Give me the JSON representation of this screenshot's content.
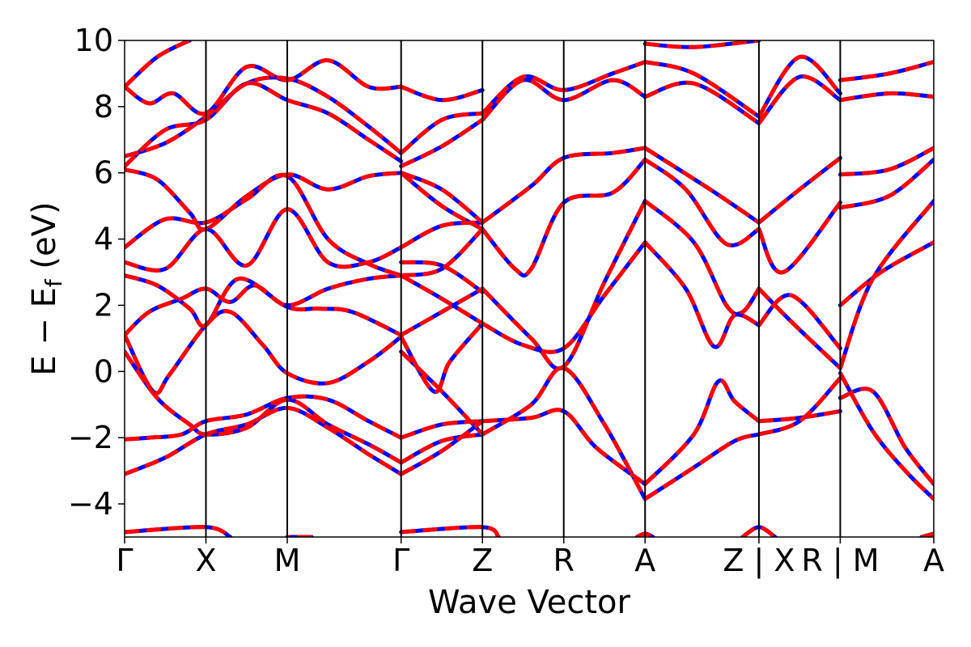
{
  "chart_data": {
    "type": "line",
    "xlabel": "Wave Vector",
    "ylabel_parts": [
      "E − E",
      "f",
      " (eV)"
    ],
    "ylim": [
      -5,
      10
    ],
    "yticks": [
      -4,
      -2,
      0,
      2,
      4,
      6,
      8,
      10
    ],
    "ytick_labels": [
      "−4",
      "−2",
      "0",
      "2",
      "4",
      "6",
      "8",
      "10"
    ],
    "xlim": [
      0,
      9.95
    ],
    "kpath": [
      {
        "label": "Γ",
        "x": 0
      },
      {
        "label": "X",
        "x": 1
      },
      {
        "label": "M",
        "x": 2
      },
      {
        "label": "Γ",
        "x": 3.4
      },
      {
        "label": "Z",
        "x": 4.4
      },
      {
        "label": "R",
        "x": 5.4
      },
      {
        "label": "A",
        "x": 6.4
      },
      {
        "label": "Z | X",
        "x": 7.8
      },
      {
        "label": "R | M",
        "x": 8.8
      },
      {
        "label": "A",
        "x": 9.95
      }
    ],
    "colors": {
      "series_a": "#0000ff",
      "series_b": "#ff0000"
    },
    "bands": [
      [
        [
          0,
          -3.1
        ],
        [
          0.5,
          -2.6
        ],
        [
          1,
          -1.9
        ],
        [
          1.5,
          -1.6
        ],
        [
          2,
          -1.1
        ],
        [
          2.5,
          -1.7
        ],
        [
          3.0,
          -2.5
        ],
        [
          3.4,
          -3.1
        ]
      ],
      [
        [
          0,
          -2.05
        ],
        [
          0.3,
          -2.0
        ],
        [
          0.7,
          -1.9
        ],
        [
          1,
          -1.5
        ],
        [
          1.5,
          -1.3
        ],
        [
          2,
          -0.8
        ],
        [
          2.5,
          -0.85
        ],
        [
          3.0,
          -1.5
        ],
        [
          3.4,
          -2.0
        ]
      ],
      [
        [
          0,
          1.1
        ],
        [
          0.35,
          -0.6
        ],
        [
          0.55,
          -0.1
        ],
        [
          1,
          1.4
        ],
        [
          1.3,
          1.8
        ],
        [
          1.7,
          0.8
        ],
        [
          2,
          -0.05
        ],
        [
          2.5,
          -0.35
        ],
        [
          3.0,
          0.3
        ],
        [
          3.4,
          1.05
        ]
      ],
      [
        [
          0,
          0.6
        ],
        [
          0.4,
          -0.8
        ],
        [
          0.8,
          -1.6
        ],
        [
          1,
          -1.9
        ],
        [
          1.5,
          -1.7
        ],
        [
          2,
          -0.85
        ],
        [
          2.5,
          -1.6
        ],
        [
          3.0,
          -2.2
        ],
        [
          3.4,
          -2.75
        ]
      ],
      [
        [
          0,
          1.1
        ],
        [
          0.3,
          1.8
        ],
        [
          0.7,
          2.2
        ],
        [
          1,
          2.5
        ],
        [
          1.3,
          2.1
        ],
        [
          1.6,
          2.6
        ],
        [
          2,
          2.0
        ],
        [
          2.5,
          2.5
        ],
        [
          3.0,
          2.8
        ],
        [
          3.4,
          2.9
        ]
      ],
      [
        [
          0,
          2.9
        ],
        [
          0.4,
          2.6
        ],
        [
          0.8,
          1.9
        ],
        [
          1,
          1.4
        ],
        [
          1.4,
          2.8
        ],
        [
          2,
          1.95
        ],
        [
          2.4,
          1.9
        ],
        [
          2.8,
          1.8
        ],
        [
          3.4,
          1.1
        ]
      ],
      [
        [
          0,
          3.3
        ],
        [
          0.5,
          3.1
        ],
        [
          1,
          4.3
        ],
        [
          1.5,
          3.2
        ],
        [
          2,
          4.9
        ],
        [
          2.5,
          3.3
        ],
        [
          3.0,
          3.3
        ],
        [
          3.4,
          3.75
        ]
      ],
      [
        [
          0,
          3.75
        ],
        [
          0.5,
          4.6
        ],
        [
          1,
          4.5
        ],
        [
          1.5,
          5.2
        ],
        [
          2,
          5.9
        ],
        [
          2.5,
          4.0
        ],
        [
          3.0,
          3.25
        ],
        [
          3.4,
          2.9
        ]
      ],
      [
        [
          0,
          6.1
        ],
        [
          0.4,
          5.8
        ],
        [
          0.8,
          4.8
        ],
        [
          1,
          4.3
        ],
        [
          1.5,
          5.3
        ],
        [
          2,
          5.95
        ],
        [
          2.5,
          5.5
        ],
        [
          3.0,
          5.9
        ],
        [
          3.4,
          6.0
        ]
      ],
      [
        [
          0,
          6.2
        ],
        [
          0.5,
          7.3
        ],
        [
          1,
          7.6
        ],
        [
          1.5,
          8.7
        ],
        [
          2,
          8.2
        ],
        [
          2.5,
          7.8
        ],
        [
          3.0,
          7.0
        ],
        [
          3.4,
          6.35
        ]
      ],
      [
        [
          0,
          6.5
        ],
        [
          0.5,
          6.9
        ],
        [
          1,
          7.7
        ],
        [
          1.5,
          8.7
        ],
        [
          2,
          8.85
        ],
        [
          2.5,
          8.3
        ],
        [
          3.0,
          7.4
        ],
        [
          3.4,
          6.6
        ]
      ],
      [
        [
          0,
          8.6
        ],
        [
          0.3,
          8.1
        ],
        [
          0.6,
          8.4
        ],
        [
          1,
          7.8
        ],
        [
          1.5,
          9.2
        ],
        [
          2,
          8.8
        ],
        [
          2.5,
          9.4
        ],
        [
          3.0,
          8.6
        ],
        [
          3.4,
          8.6
        ]
      ],
      [
        [
          0,
          8.6
        ],
        [
          0.4,
          9.5
        ],
        [
          0.8,
          10.0
        ]
      ],
      [
        [
          3.4,
          -2.75
        ],
        [
          3.9,
          -2.1
        ],
        [
          4.4,
          -1.9
        ]
      ],
      [
        [
          3.4,
          -2.0
        ],
        [
          3.9,
          -1.6
        ],
        [
          4.4,
          -1.5
        ]
      ],
      [
        [
          3.4,
          -3.1
        ],
        [
          3.9,
          -2.4
        ],
        [
          4.4,
          -1.5
        ]
      ],
      [
        [
          3.4,
          1.05
        ],
        [
          3.8,
          -0.6
        ],
        [
          4.0,
          0.3
        ],
        [
          4.4,
          1.45
        ]
      ],
      [
        [
          3.4,
          0.6
        ],
        [
          3.9,
          -0.6
        ],
        [
          4.4,
          -1.9
        ]
      ],
      [
        [
          3.4,
          2.9
        ],
        [
          3.9,
          2.2
        ],
        [
          4.4,
          1.45
        ]
      ],
      [
        [
          3.4,
          1.1
        ],
        [
          3.9,
          1.8
        ],
        [
          4.4,
          2.5
        ]
      ],
      [
        [
          3.4,
          2.9
        ],
        [
          3.9,
          3.1
        ],
        [
          4.4,
          4.3
        ]
      ],
      [
        [
          3.4,
          3.3
        ],
        [
          3.9,
          3.2
        ],
        [
          4.4,
          2.4
        ]
      ],
      [
        [
          3.4,
          3.75
        ],
        [
          3.9,
          4.4
        ],
        [
          4.4,
          4.5
        ]
      ],
      [
        [
          3.4,
          6.0
        ],
        [
          3.9,
          5.5
        ],
        [
          4.4,
          4.5
        ]
      ],
      [
        [
          3.4,
          6.0
        ],
        [
          3.9,
          5.0
        ],
        [
          4.4,
          4.3
        ]
      ],
      [
        [
          3.4,
          6.2
        ],
        [
          3.9,
          6.8
        ],
        [
          4.4,
          7.6
        ]
      ],
      [
        [
          3.4,
          6.6
        ],
        [
          3.9,
          7.6
        ],
        [
          4.4,
          7.8
        ]
      ],
      [
        [
          3.4,
          8.6
        ],
        [
          3.9,
          8.2
        ],
        [
          4.4,
          8.5
        ]
      ],
      [
        [
          4.4,
          -1.5
        ],
        [
          5.0,
          -1.4
        ],
        [
          5.4,
          -1.2
        ],
        [
          5.8,
          -2.3
        ],
        [
          6.4,
          -3.4
        ]
      ],
      [
        [
          4.4,
          -1.9
        ],
        [
          5.0,
          -1.0
        ],
        [
          5.4,
          0.1
        ],
        [
          5.9,
          -1.6
        ],
        [
          6.4,
          -3.85
        ]
      ],
      [
        [
          4.4,
          1.45
        ],
        [
          4.9,
          0.8
        ],
        [
          5.4,
          0.7
        ],
        [
          5.9,
          2.3
        ],
        [
          6.4,
          3.9
        ]
      ],
      [
        [
          4.4,
          2.5
        ],
        [
          5.0,
          1.0
        ],
        [
          5.4,
          0.15
        ],
        [
          5.9,
          2.7
        ],
        [
          6.4,
          5.15
        ]
      ],
      [
        [
          4.4,
          4.3
        ],
        [
          4.8,
          3.1
        ],
        [
          5.0,
          3.1
        ],
        [
          5.4,
          5.1
        ],
        [
          6.0,
          5.4
        ],
        [
          6.4,
          6.4
        ]
      ],
      [
        [
          4.4,
          4.5
        ],
        [
          5.0,
          5.6
        ],
        [
          5.4,
          6.45
        ],
        [
          6.0,
          6.6
        ],
        [
          6.4,
          6.75
        ]
      ],
      [
        [
          4.4,
          7.6
        ],
        [
          4.9,
          8.8
        ],
        [
          5.4,
          8.2
        ],
        [
          6.0,
          8.8
        ],
        [
          6.4,
          8.3
        ]
      ],
      [
        [
          4.4,
          7.8
        ],
        [
          4.9,
          8.9
        ],
        [
          5.4,
          8.5
        ],
        [
          6.0,
          9.0
        ],
        [
          6.4,
          9.35
        ]
      ],
      [
        [
          6.4,
          -3.4
        ],
        [
          7.0,
          -1.9
        ],
        [
          7.3,
          -0.3
        ],
        [
          7.5,
          -0.9
        ],
        [
          7.8,
          -1.5
        ]
      ],
      [
        [
          6.4,
          -3.85
        ],
        [
          7.0,
          -2.9
        ],
        [
          7.5,
          -2.1
        ],
        [
          7.8,
          -1.9
        ]
      ],
      [
        [
          6.4,
          3.9
        ],
        [
          6.9,
          2.5
        ],
        [
          7.25,
          0.75
        ],
        [
          7.5,
          1.7
        ],
        [
          7.8,
          1.4
        ]
      ],
      [
        [
          6.4,
          5.15
        ],
        [
          7.0,
          3.9
        ],
        [
          7.4,
          2.0
        ],
        [
          7.6,
          1.8
        ],
        [
          7.8,
          2.5
        ]
      ],
      [
        [
          6.4,
          6.4
        ],
        [
          6.9,
          5.5
        ],
        [
          7.4,
          3.85
        ],
        [
          7.8,
          4.3
        ]
      ],
      [
        [
          6.4,
          6.75
        ],
        [
          7.2,
          5.5
        ],
        [
          7.8,
          4.5
        ]
      ],
      [
        [
          6.4,
          8.3
        ],
        [
          7.0,
          8.7
        ],
        [
          7.8,
          7.5
        ]
      ],
      [
        [
          6.4,
          9.35
        ],
        [
          7.0,
          9.0
        ],
        [
          7.8,
          7.7
        ]
      ],
      [
        [
          6.4,
          9.9
        ],
        [
          7.0,
          9.8
        ],
        [
          7.8,
          10.0
        ]
      ],
      [
        [
          7.8,
          -1.5
        ],
        [
          8.3,
          -1.4
        ],
        [
          8.8,
          -1.2
        ]
      ],
      [
        [
          7.8,
          -1.9
        ],
        [
          8.3,
          -1.5
        ],
        [
          8.8,
          -0.2
        ]
      ],
      [
        [
          7.8,
          1.4
        ],
        [
          8.2,
          2.3
        ],
        [
          8.8,
          0.7
        ]
      ],
      [
        [
          7.8,
          2.5
        ],
        [
          8.2,
          1.5
        ],
        [
          8.8,
          0.1
        ]
      ],
      [
        [
          7.8,
          4.3
        ],
        [
          8.1,
          3.0
        ],
        [
          8.8,
          5.1
        ]
      ],
      [
        [
          7.8,
          4.5
        ],
        [
          8.3,
          5.5
        ],
        [
          8.8,
          6.45
        ]
      ],
      [
        [
          7.8,
          7.5
        ],
        [
          8.3,
          8.9
        ],
        [
          8.8,
          8.2
        ]
      ],
      [
        [
          7.8,
          7.7
        ],
        [
          8.3,
          9.5
        ],
        [
          8.8,
          8.4
        ]
      ],
      [
        [
          8.8,
          -0.8
        ],
        [
          9.2,
          -0.6
        ],
        [
          9.6,
          -2.3
        ],
        [
          9.95,
          -3.4
        ]
      ],
      [
        [
          8.8,
          -0.05
        ],
        [
          9.2,
          -1.8
        ],
        [
          9.6,
          -3.0
        ],
        [
          9.95,
          -3.85
        ]
      ],
      [
        [
          8.8,
          2.0
        ],
        [
          9.3,
          3.0
        ],
        [
          9.95,
          3.9
        ]
      ],
      [
        [
          8.8,
          0.1
        ],
        [
          9.2,
          2.8
        ],
        [
          9.95,
          5.15
        ]
      ],
      [
        [
          8.8,
          4.95
        ],
        [
          9.4,
          5.3
        ],
        [
          9.95,
          6.4
        ]
      ],
      [
        [
          8.8,
          5.95
        ],
        [
          9.4,
          6.1
        ],
        [
          9.95,
          6.75
        ]
      ],
      [
        [
          8.8,
          8.2
        ],
        [
          9.4,
          8.4
        ],
        [
          9.95,
          8.3
        ]
      ],
      [
        [
          8.8,
          8.8
        ],
        [
          9.4,
          9.0
        ],
        [
          9.95,
          9.35
        ]
      ],
      [
        [
          0,
          -4.85
        ],
        [
          1.0,
          -4.7
        ],
        [
          1.3,
          -5.0
        ]
      ],
      [
        [
          3.4,
          -4.85
        ],
        [
          4.4,
          -4.7
        ],
        [
          4.6,
          -5.0
        ]
      ],
      [
        [
          7.6,
          -5.0
        ],
        [
          7.8,
          -4.7
        ],
        [
          8.0,
          -5.0
        ]
      ],
      [
        [
          9.8,
          -5.0
        ],
        [
          9.95,
          -4.9
        ]
      ],
      [
        [
          6.3,
          -5.0
        ],
        [
          6.4,
          -4.9
        ],
        [
          6.5,
          -5.0
        ]
      ],
      [
        [
          2.3,
          -5.0
        ],
        [
          2.0,
          -5.0
        ]
      ]
    ]
  }
}
